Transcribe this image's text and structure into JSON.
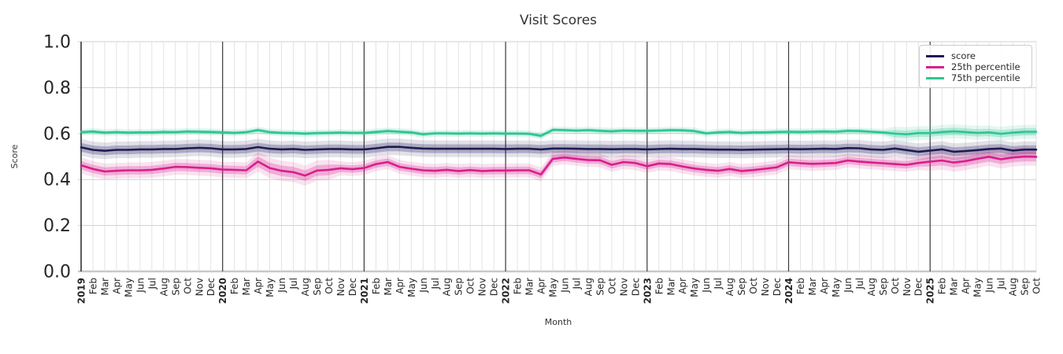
{
  "chart": {
    "title": "Visit Scores",
    "xlabel": "Month",
    "ylabel": "Score"
  },
  "chart_data": {
    "type": "line",
    "title": "Visit Scores",
    "xlabel": "Month",
    "ylabel": "Score",
    "ylim": [
      0.0,
      1.0
    ],
    "yticks": [
      0.0,
      0.2,
      0.4,
      0.6,
      0.8,
      1.0
    ],
    "grid": true,
    "legend_position": "upper right",
    "x_labels": [
      "2019",
      "Feb",
      "Mar",
      "Apr",
      "May",
      "Jun",
      "Jul",
      "Aug",
      "Sep",
      "Oct",
      "Nov",
      "Dec",
      "2020",
      "Feb",
      "Mar",
      "Apr",
      "May",
      "Jun",
      "Jul",
      "Aug",
      "Sep",
      "Oct",
      "Nov",
      "Dec",
      "2021",
      "Feb",
      "Mar",
      "Apr",
      "May",
      "Jun",
      "Jul",
      "Aug",
      "Sep",
      "Oct",
      "Nov",
      "Dec",
      "2022",
      "Feb",
      "Mar",
      "Apr",
      "May",
      "Jun",
      "Jul",
      "Aug",
      "Sep",
      "Oct",
      "Nov",
      "Dec",
      "2023",
      "Feb",
      "Mar",
      "Apr",
      "May",
      "Jun",
      "Jul",
      "Aug",
      "Sep",
      "Oct",
      "Nov",
      "Dec",
      "2024",
      "Feb",
      "Mar",
      "Apr",
      "May",
      "Jun",
      "Jul",
      "Aug",
      "Sep",
      "Oct",
      "Nov",
      "Dec",
      "2025",
      "Feb",
      "Mar",
      "Apr",
      "May",
      "Jun",
      "Jul",
      "Aug",
      "Sep",
      "Oct"
    ],
    "year_separators": [
      "2020",
      "2021",
      "2022",
      "2023",
      "2024",
      "2025"
    ],
    "series": [
      {
        "name": "score",
        "color": "#1e1a55",
        "values": [
          0.54,
          0.529,
          0.525,
          0.529,
          0.529,
          0.531,
          0.531,
          0.533,
          0.533,
          0.536,
          0.538,
          0.536,
          0.531,
          0.531,
          0.533,
          0.541,
          0.534,
          0.531,
          0.533,
          0.529,
          0.531,
          0.533,
          0.533,
          0.531,
          0.531,
          0.536,
          0.542,
          0.542,
          0.538,
          0.535,
          0.534,
          0.534,
          0.534,
          0.534,
          0.534,
          0.534,
          0.533,
          0.534,
          0.534,
          0.531,
          0.535,
          0.535,
          0.534,
          0.533,
          0.533,
          0.532,
          0.533,
          0.533,
          0.531,
          0.533,
          0.534,
          0.533,
          0.533,
          0.531,
          0.53,
          0.53,
          0.529,
          0.53,
          0.531,
          0.532,
          0.533,
          0.532,
          0.533,
          0.534,
          0.533,
          0.537,
          0.536,
          0.531,
          0.529,
          0.535,
          0.528,
          0.521,
          0.526,
          0.531,
          0.521,
          0.524,
          0.528,
          0.533,
          0.535,
          0.526,
          0.53,
          0.53
        ],
        "band_segments": [
          [
            0,
            81,
            0.019
          ]
        ]
      },
      {
        "name": "25th percentile",
        "color": "#d81e8d",
        "values": [
          0.462,
          0.446,
          0.435,
          0.438,
          0.44,
          0.44,
          0.442,
          0.448,
          0.455,
          0.454,
          0.451,
          0.449,
          0.443,
          0.442,
          0.44,
          0.478,
          0.45,
          0.438,
          0.432,
          0.417,
          0.439,
          0.442,
          0.449,
          0.445,
          0.45,
          0.467,
          0.476,
          0.455,
          0.447,
          0.44,
          0.438,
          0.442,
          0.437,
          0.441,
          0.437,
          0.439,
          0.439,
          0.44,
          0.44,
          0.422,
          0.49,
          0.496,
          0.49,
          0.485,
          0.484,
          0.464,
          0.476,
          0.472,
          0.458,
          0.47,
          0.467,
          0.457,
          0.448,
          0.442,
          0.438,
          0.446,
          0.437,
          0.441,
          0.447,
          0.453,
          0.475,
          0.471,
          0.468,
          0.47,
          0.472,
          0.483,
          0.478,
          0.474,
          0.471,
          0.467,
          0.464,
          0.472,
          0.478,
          0.483,
          0.474,
          0.48,
          0.49,
          0.499,
          0.488,
          0.496,
          0.5,
          0.499
        ],
        "band_segments": [
          [
            0,
            14,
            0.018
          ],
          [
            15,
            21,
            0.023
          ],
          [
            22,
            39,
            0.016
          ],
          [
            40,
            71,
            0.016
          ],
          [
            72,
            81,
            0.021
          ]
        ]
      },
      {
        "name": "75th percentile",
        "color": "#2ec592",
        "values": [
          0.606,
          0.609,
          0.604,
          0.606,
          0.604,
          0.605,
          0.605,
          0.607,
          0.606,
          0.609,
          0.608,
          0.607,
          0.605,
          0.603,
          0.606,
          0.615,
          0.606,
          0.603,
          0.602,
          0.6,
          0.602,
          0.603,
          0.604,
          0.603,
          0.603,
          0.607,
          0.611,
          0.608,
          0.605,
          0.597,
          0.601,
          0.601,
          0.6,
          0.601,
          0.6,
          0.601,
          0.6,
          0.6,
          0.599,
          0.59,
          0.616,
          0.615,
          0.613,
          0.615,
          0.612,
          0.61,
          0.613,
          0.612,
          0.612,
          0.613,
          0.615,
          0.614,
          0.611,
          0.601,
          0.605,
          0.607,
          0.603,
          0.605,
          0.605,
          0.607,
          0.608,
          0.607,
          0.608,
          0.609,
          0.608,
          0.612,
          0.611,
          0.608,
          0.605,
          0.6,
          0.597,
          0.602,
          0.602,
          0.607,
          0.61,
          0.607,
          0.603,
          0.605,
          0.599,
          0.604,
          0.608,
          0.608
        ],
        "band_segments": [
          [
            0,
            68,
            0.008
          ],
          [
            69,
            81,
            0.016
          ]
        ]
      }
    ]
  },
  "colors": {
    "grid": "#dcdcdc",
    "y_grid": "#d0d0d0",
    "baseline": "#c8c8c8",
    "year_separator": "#3a3a3a",
    "spine": "#262626",
    "title_text": "#333333",
    "tick_text": "#262626",
    "axis_label_text": "#333333",
    "legend_border": "#cccccc"
  }
}
